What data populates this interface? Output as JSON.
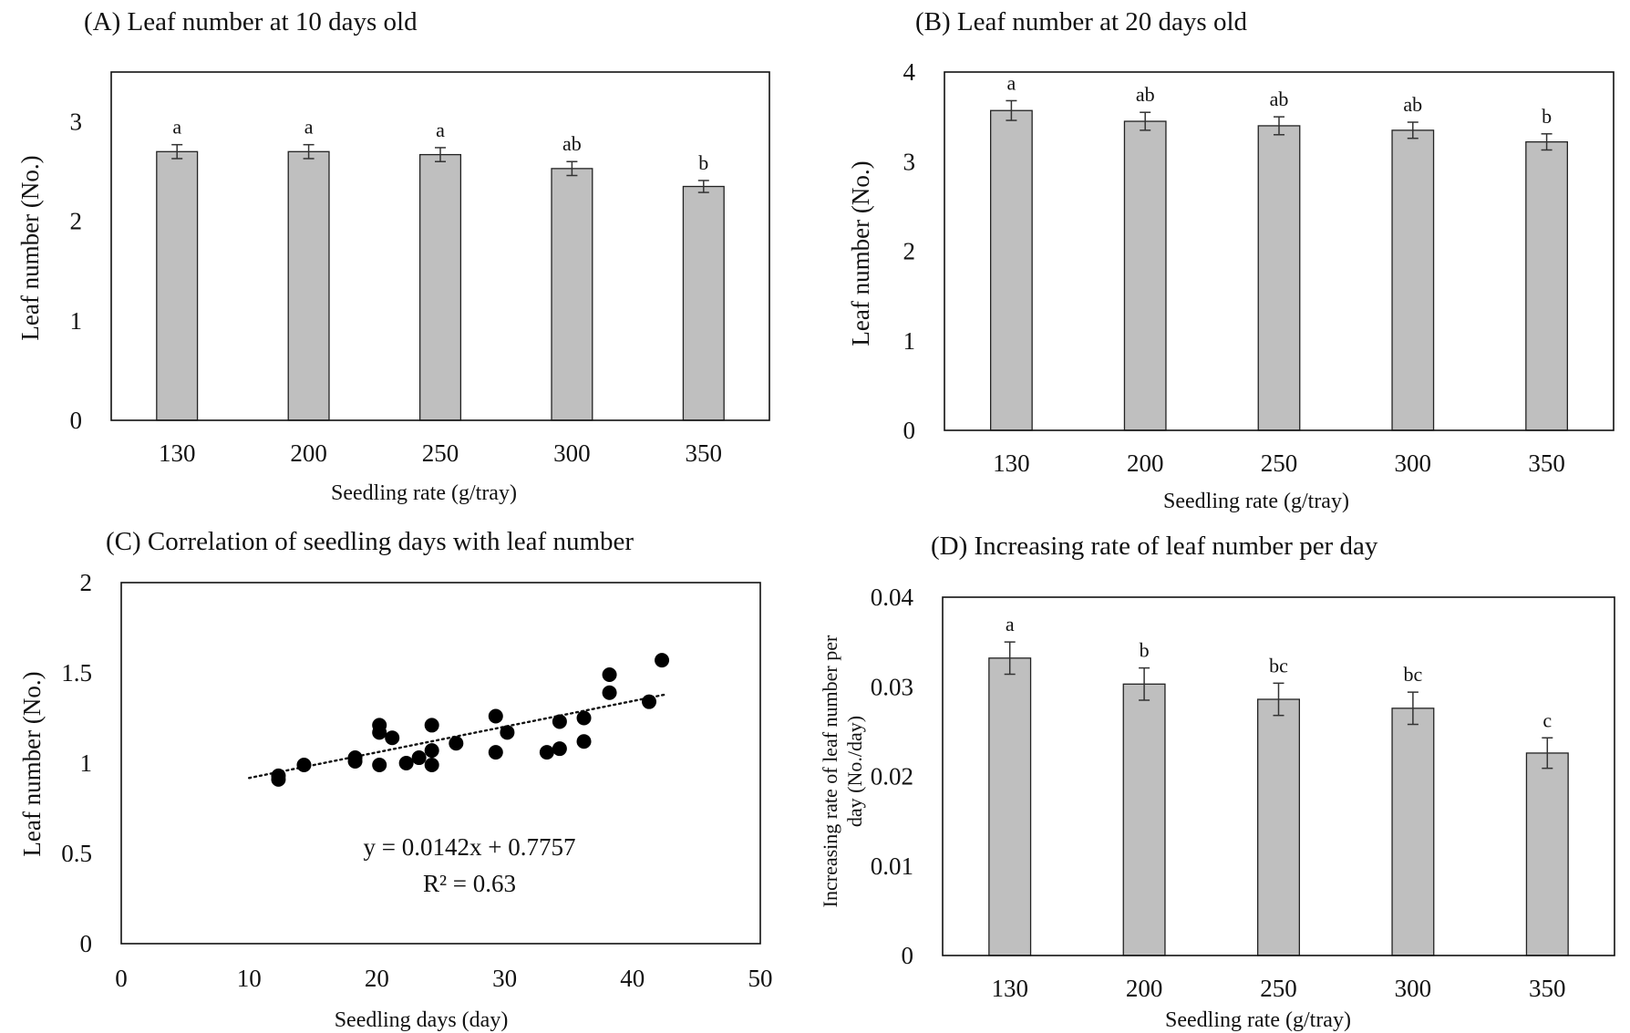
{
  "chart_data": [
    {
      "id": "A",
      "type": "bar",
      "title": "(A) Leaf number at 10 days old",
      "xlabel": "Seedling rate (g/tray)",
      "ylabel": "Leaf number (No.)",
      "categories": [
        "130",
        "200",
        "250",
        "300",
        "350"
      ],
      "values": [
        2.7,
        2.7,
        2.67,
        2.53,
        2.35
      ],
      "errors": [
        0.07,
        0.07,
        0.07,
        0.07,
        0.06
      ],
      "letters": [
        "a",
        "a",
        "a",
        "ab",
        "b"
      ],
      "ylim": [
        0,
        3.5
      ],
      "yticks": [
        0,
        1,
        2,
        3
      ],
      "yticklabels": [
        "0",
        "1",
        "2",
        "3"
      ],
      "bar_color": "#bfbfbf",
      "grid": false
    },
    {
      "id": "B",
      "type": "bar",
      "title": "(B) Leaf number at 20 days old",
      "xlabel": "Seedling rate (g/tray)",
      "ylabel": "Leaf number (No.)",
      "categories": [
        "130",
        "200",
        "250",
        "300",
        "350"
      ],
      "values": [
        3.57,
        3.45,
        3.4,
        3.35,
        3.22
      ],
      "errors": [
        0.11,
        0.1,
        0.1,
        0.09,
        0.09
      ],
      "letters": [
        "a",
        "ab",
        "ab",
        "ab",
        "b"
      ],
      "ylim": [
        0,
        4
      ],
      "yticks": [
        0,
        1,
        2,
        3,
        4
      ],
      "yticklabels": [
        "0",
        "1",
        "2",
        "3",
        "4"
      ],
      "bar_color": "#bfbfbf",
      "grid": false
    },
    {
      "id": "C",
      "type": "scatter",
      "title": "(C) Correlation of seedling days with leaf number",
      "xlabel": "Seedling days (day)",
      "ylabel": "Leaf number (No.)",
      "xlim": [
        0,
        50
      ],
      "ylim": [
        0,
        2
      ],
      "xticks": [
        0,
        10,
        20,
        30,
        40,
        50
      ],
      "xticklabels": [
        "0",
        "10",
        "20",
        "30",
        "40",
        "50"
      ],
      "yticks": [
        0,
        0.5,
        1,
        1.5,
        2
      ],
      "yticklabels": [
        "0",
        "0.5",
        "1",
        "1.5",
        "2"
      ],
      "points": [
        [
          12.3,
          0.91
        ],
        [
          12.3,
          0.93
        ],
        [
          14.3,
          0.99
        ],
        [
          18.3,
          1.01
        ],
        [
          18.3,
          1.03
        ],
        [
          20.2,
          0.99
        ],
        [
          20.2,
          1.17
        ],
        [
          20.2,
          1.21
        ],
        [
          21.2,
          1.14
        ],
        [
          22.3,
          1.0
        ],
        [
          23.3,
          1.03
        ],
        [
          24.3,
          0.99
        ],
        [
          24.3,
          1.07
        ],
        [
          24.3,
          1.21
        ],
        [
          26.2,
          1.11
        ],
        [
          29.3,
          1.06
        ],
        [
          29.3,
          1.26
        ],
        [
          30.2,
          1.17
        ],
        [
          33.3,
          1.06
        ],
        [
          34.3,
          1.08
        ],
        [
          34.3,
          1.23
        ],
        [
          36.2,
          1.12
        ],
        [
          36.2,
          1.25
        ],
        [
          38.2,
          1.39
        ],
        [
          38.2,
          1.49
        ],
        [
          41.3,
          1.34
        ],
        [
          42.3,
          1.57
        ]
      ],
      "trendline": {
        "slope": 0.0142,
        "intercept": 0.7757,
        "x_range": [
          10,
          42.5
        ]
      },
      "equation": "y = 0.0142x + 0.7757",
      "r2": "R² = 0.63",
      "grid": false
    },
    {
      "id": "D",
      "type": "bar",
      "title": "(D) Increasing rate of leaf number per day",
      "xlabel": "Seedling rate (g/tray)",
      "ylabel": [
        "Increasing rate of leaf number per",
        "day (No./day)"
      ],
      "categories": [
        "130",
        "200",
        "250",
        "300",
        "350"
      ],
      "values": [
        0.0332,
        0.0303,
        0.0286,
        0.0276,
        0.0226
      ],
      "errors": [
        0.0018,
        0.0018,
        0.0018,
        0.0018,
        0.0017
      ],
      "letters": [
        "a",
        "b",
        "bc",
        "bc",
        "c"
      ],
      "ylim": [
        0,
        0.04
      ],
      "yticks": [
        0,
        0.01,
        0.02,
        0.03,
        0.04
      ],
      "yticklabels": [
        "0",
        "0.01",
        "0.02",
        "0.03",
        "0.04"
      ],
      "bar_color": "#bfbfbf",
      "grid": false
    }
  ]
}
